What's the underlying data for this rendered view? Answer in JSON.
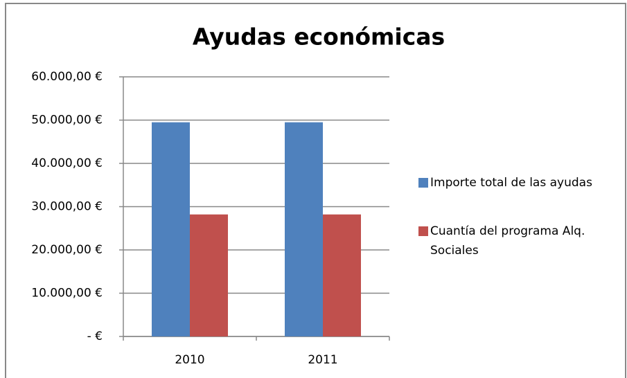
{
  "chart_data": {
    "type": "bar",
    "title": "Ayudas económicas",
    "categories": [
      "2010",
      "2011"
    ],
    "series": [
      {
        "name": "Importe total de las ayudas",
        "color": "#4f81bd",
        "values": [
          49500,
          49500
        ]
      },
      {
        "name": "Cuantía del programa Alq. Sociales",
        "color": "#c0504d",
        "values": [
          28200,
          28200
        ]
      }
    ],
    "ylim": [
      0,
      60000
    ],
    "yticks": [
      {
        "value": 0,
        "label": "-   €"
      },
      {
        "value": 10000,
        "label": "10.000,00 €"
      },
      {
        "value": 20000,
        "label": "20.000,00 €"
      },
      {
        "value": 30000,
        "label": "30.000,00 €"
      },
      {
        "value": 40000,
        "label": "40.000,00 €"
      },
      {
        "value": 50000,
        "label": "50.000,00 €"
      },
      {
        "value": 60000,
        "label": "60.000,00 €"
      }
    ],
    "grid": true,
    "legend": "right"
  }
}
